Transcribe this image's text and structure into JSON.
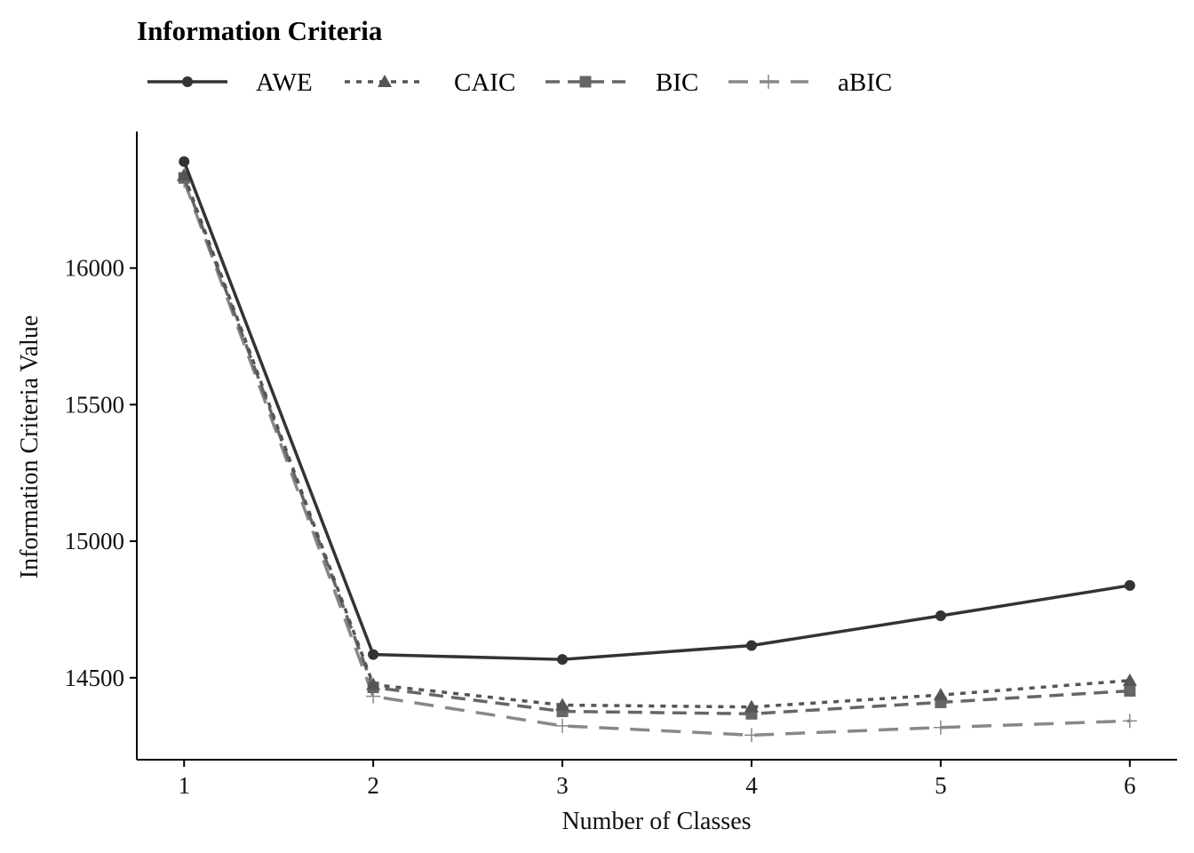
{
  "chart_data": {
    "type": "line",
    "title": "Information Criteria",
    "xlabel": "Number of Classes",
    "ylabel": "Information Criteria Value",
    "x": [
      1,
      2,
      3,
      4,
      5,
      6
    ],
    "xticks": [
      "1",
      "2",
      "3",
      "4",
      "5",
      "6"
    ],
    "yticks": [
      14500,
      15000,
      15500,
      16000
    ],
    "ylim": [
      14200,
      16500
    ],
    "xlim": [
      0.75,
      6.25
    ],
    "grid": false,
    "legend_position": "top-left",
    "series": [
      {
        "name": "AWE",
        "values": [
          16390,
          14585,
          14567,
          14618,
          14727,
          14838
        ],
        "color": "#333333",
        "dash": "solid",
        "marker": "circle"
      },
      {
        "name": "CAIC",
        "values": [
          16340,
          14475,
          14400,
          14393,
          14437,
          14490
        ],
        "color": "#555555",
        "dash": "dotted",
        "marker": "triangle"
      },
      {
        "name": "BIC",
        "values": [
          16330,
          14465,
          14377,
          14368,
          14410,
          14452
        ],
        "color": "#666666",
        "dash": "dashed",
        "marker": "square"
      },
      {
        "name": "aBIC",
        "values": [
          16320,
          14432,
          14324,
          14290,
          14318,
          14342
        ],
        "color": "#888888",
        "dash": "longdash",
        "marker": "plus"
      }
    ]
  }
}
